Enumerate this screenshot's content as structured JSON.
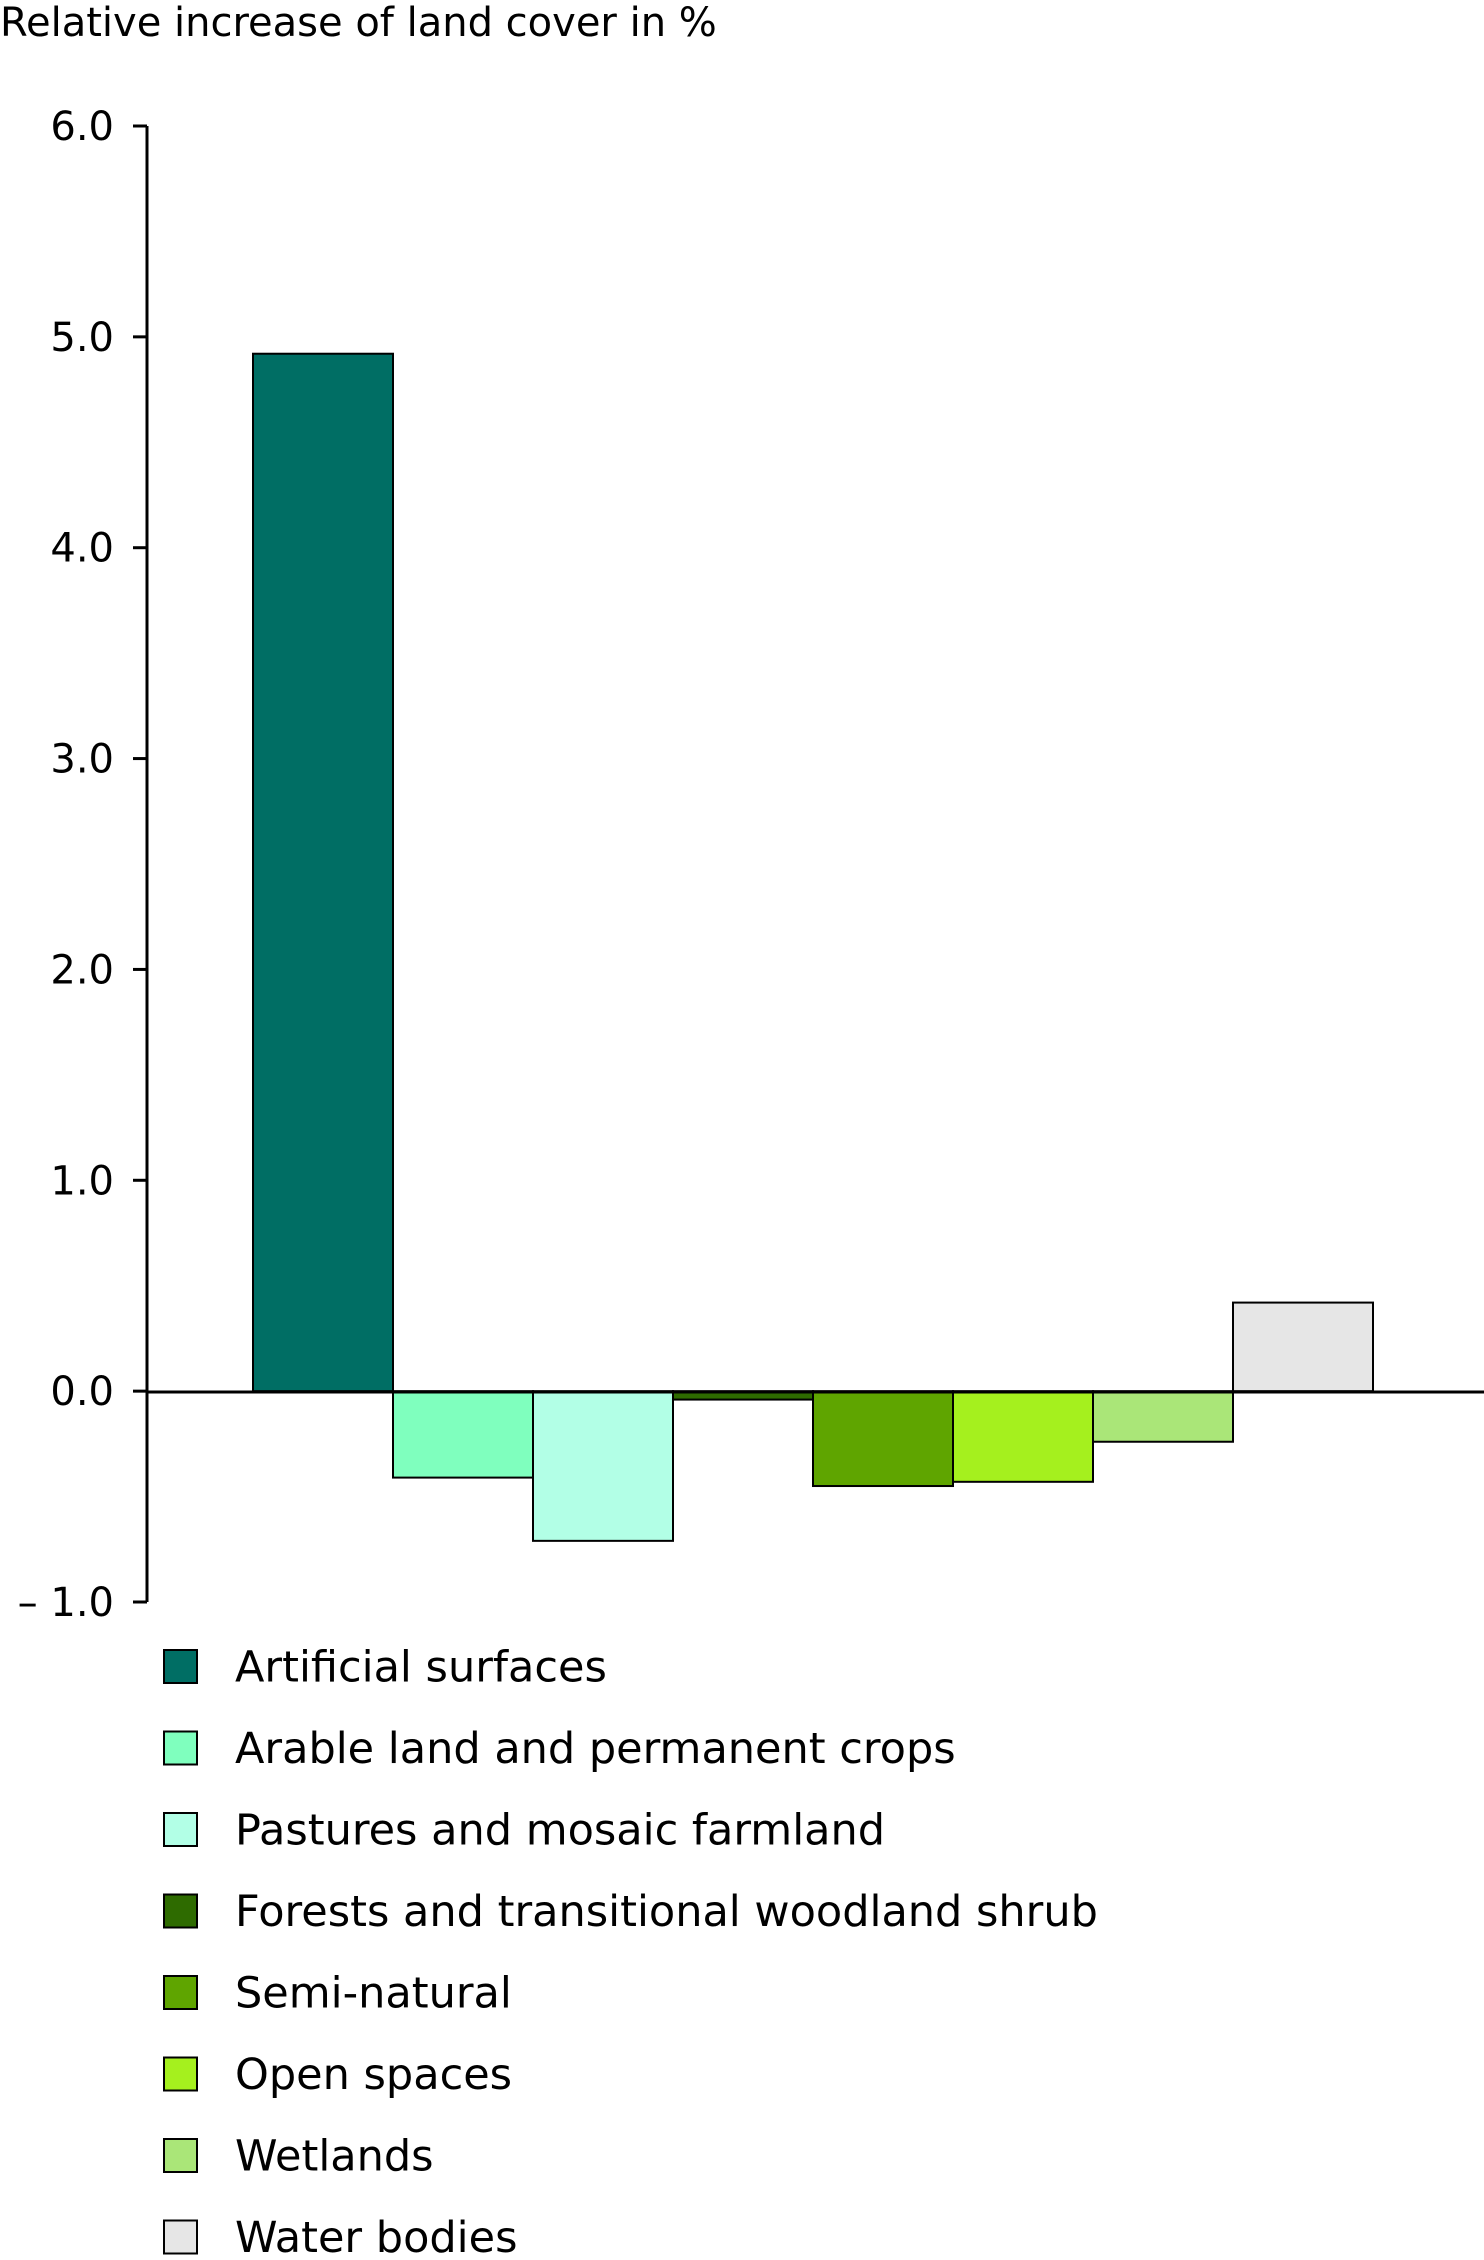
{
  "chart_data": {
    "type": "bar",
    "title": "",
    "xlabel": "",
    "ylabel": "Relative increase of land cover in %",
    "ylim": [
      -1.0,
      6.0
    ],
    "yticks": [
      "6.0",
      "5.0",
      "4.0",
      "3.0",
      "2.0",
      "1.0",
      "0.0",
      "– 1.0"
    ],
    "ytick_values": [
      6,
      5,
      4,
      3,
      2,
      1,
      0,
      -1
    ],
    "grid": false,
    "legend_position": "bottom",
    "categories": [
      "Artificial surfaces",
      "Arable land and permanent crops",
      "Pastures and mosaic farmland",
      "Forests and transitional woodland shrub",
      "Semi-natural",
      "Open spaces",
      "Wetlands",
      "Water bodies"
    ],
    "values": [
      4.92,
      -0.41,
      -0.71,
      -0.04,
      -0.45,
      -0.43,
      -0.24,
      0.42
    ],
    "colors": [
      "#006e64",
      "#7fffbe",
      "#b2ffe6",
      "#2e6b00",
      "#5fa500",
      "#a5f01e",
      "#aae678",
      "#e6e6e6"
    ]
  }
}
